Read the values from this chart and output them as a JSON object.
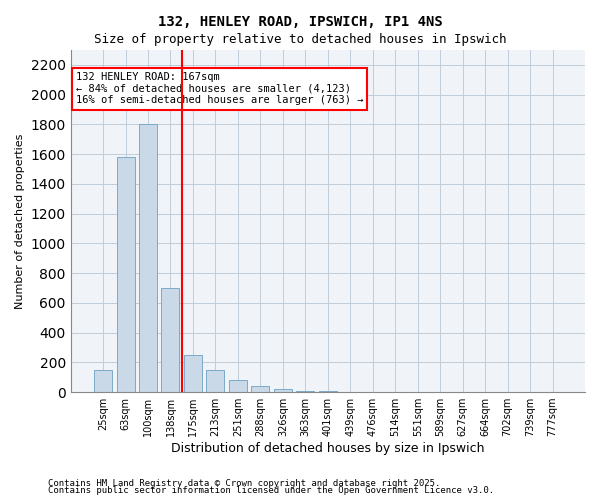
{
  "title1": "132, HENLEY ROAD, IPSWICH, IP1 4NS",
  "title2": "Size of property relative to detached houses in Ipswich",
  "xlabel": "Distribution of detached houses by size in Ipswich",
  "ylabel": "Number of detached properties",
  "categories": [
    "25sqm",
    "63sqm",
    "100sqm",
    "138sqm",
    "175sqm",
    "213sqm",
    "251sqm",
    "288sqm",
    "326sqm",
    "363sqm",
    "401sqm",
    "439sqm",
    "476sqm",
    "514sqm",
    "551sqm",
    "589sqm",
    "627sqm",
    "664sqm",
    "702sqm",
    "739sqm",
    "777sqm"
  ],
  "values": [
    150,
    1580,
    1800,
    700,
    250,
    150,
    80,
    40,
    18,
    10,
    5,
    2,
    1,
    0,
    0,
    0,
    0,
    0,
    0,
    0,
    0
  ],
  "bar_color": "#c9d9e8",
  "bar_edge_color": "#7aaac8",
  "vline_x": 3,
  "vline_color": "red",
  "ylim": [
    0,
    2300
  ],
  "yticks": [
    0,
    200,
    400,
    600,
    800,
    1000,
    1200,
    1400,
    1600,
    1800,
    2000,
    2200
  ],
  "annotation_title": "132 HENLEY ROAD: 167sqm",
  "annotation_line1": "← 84% of detached houses are smaller (4,123)",
  "annotation_line2": "16% of semi-detached houses are larger (763) →",
  "footnote1": "Contains HM Land Registry data © Crown copyright and database right 2025.",
  "footnote2": "Contains public sector information licensed under the Open Government Licence v3.0.",
  "bg_color": "#f0f4f8",
  "grid_color": "#c0ccd8"
}
